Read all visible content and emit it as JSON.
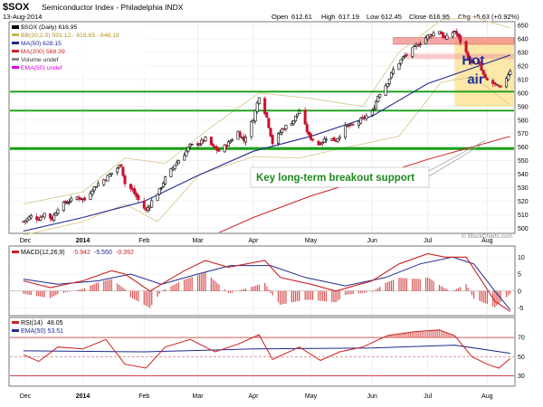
{
  "chart_data": {
    "type": "candlestick",
    "header": {
      "symbol": "$SOX",
      "name": "Semiconductor Index - Philadelphia INDX",
      "date": "13-Aug-2014",
      "open_label": "Open",
      "open": "612.61",
      "high_label": "High",
      "high": "617.19",
      "low_label": "Low",
      "low": "612.45",
      "close_label": "Close",
      "close": "616.95",
      "chg_label": "Chg",
      "chg": "+5.63 (+0.92%)",
      "watermark": "© StockCharts.com"
    },
    "price": {
      "ylim": [
        497,
        652
      ],
      "yticks": [
        500,
        510,
        520,
        530,
        540,
        550,
        560,
        570,
        580,
        590,
        600,
        610,
        620,
        630,
        640,
        650
      ],
      "legend": [
        {
          "text": "$SOX (Daily) 616.95",
          "color": "#000000"
        },
        {
          "text": "BB(20,2.0) 591.12 - 619.65 - 648.18",
          "color": "#c8b24a"
        },
        {
          "text": "MA(50) 628.15",
          "color": "#1f2a8f"
        },
        {
          "text": "MA(200) 568.39",
          "color": "#cc2222"
        },
        {
          "text": "Volume undef",
          "color": "#888888"
        },
        {
          "text": "EMA(50) undef",
          "color": "#e000e0"
        }
      ],
      "closes": [
        {
          "x": "2013-12-02",
          "y": 505
        },
        {
          "x": "2013-12-06",
          "y": 509
        },
        {
          "x": "2013-12-10",
          "y": 507
        },
        {
          "x": "2013-12-13",
          "y": 511
        },
        {
          "x": "2013-12-17",
          "y": 507
        },
        {
          "x": "2013-12-20",
          "y": 515
        },
        {
          "x": "2013-12-24",
          "y": 519
        },
        {
          "x": "2013-12-30",
          "y": 523
        },
        {
          "x": "2014-01-03",
          "y": 521
        },
        {
          "x": "2014-01-07",
          "y": 529
        },
        {
          "x": "2014-01-10",
          "y": 533
        },
        {
          "x": "2014-01-14",
          "y": 537
        },
        {
          "x": "2014-01-17",
          "y": 541
        },
        {
          "x": "2014-01-22",
          "y": 547
        },
        {
          "x": "2014-01-24",
          "y": 533
        },
        {
          "x": "2014-01-28",
          "y": 528
        },
        {
          "x": "2014-01-31",
          "y": 521
        },
        {
          "x": "2014-02-04",
          "y": 513
        },
        {
          "x": "2014-02-07",
          "y": 520
        },
        {
          "x": "2014-02-11",
          "y": 528
        },
        {
          "x": "2014-02-14",
          "y": 537
        },
        {
          "x": "2014-02-19",
          "y": 547
        },
        {
          "x": "2014-02-24",
          "y": 555
        },
        {
          "x": "2014-02-27",
          "y": 561
        },
        {
          "x": "2014-03-04",
          "y": 563
        },
        {
          "x": "2014-03-07",
          "y": 566
        },
        {
          "x": "2014-03-11",
          "y": 560
        },
        {
          "x": "2014-03-14",
          "y": 557
        },
        {
          "x": "2014-03-19",
          "y": 563
        },
        {
          "x": "2014-03-24",
          "y": 571
        },
        {
          "x": "2014-03-27",
          "y": 565
        },
        {
          "x": "2014-04-01",
          "y": 581
        },
        {
          "x": "2014-04-04",
          "y": 598
        },
        {
          "x": "2014-04-08",
          "y": 582
        },
        {
          "x": "2014-04-11",
          "y": 563
        },
        {
          "x": "2014-04-16",
          "y": 573
        },
        {
          "x": "2014-04-22",
          "y": 580
        },
        {
          "x": "2014-04-25",
          "y": 587
        },
        {
          "x": "2014-04-30",
          "y": 568
        },
        {
          "x": "2014-05-05",
          "y": 562
        },
        {
          "x": "2014-05-09",
          "y": 567
        },
        {
          "x": "2014-05-14",
          "y": 565
        },
        {
          "x": "2014-05-19",
          "y": 575
        },
        {
          "x": "2014-05-23",
          "y": 576
        },
        {
          "x": "2014-05-28",
          "y": 581
        },
        {
          "x": "2014-06-02",
          "y": 586
        },
        {
          "x": "2014-06-05",
          "y": 598
        },
        {
          "x": "2014-06-10",
          "y": 608
        },
        {
          "x": "2014-06-13",
          "y": 617
        },
        {
          "x": "2014-06-18",
          "y": 626
        },
        {
          "x": "2014-06-23",
          "y": 632
        },
        {
          "x": "2014-06-26",
          "y": 636
        },
        {
          "x": "2014-07-01",
          "y": 642
        },
        {
          "x": "2014-07-07",
          "y": 646
        },
        {
          "x": "2014-07-10",
          "y": 640
        },
        {
          "x": "2014-07-15",
          "y": 646
        },
        {
          "x": "2014-07-18",
          "y": 638
        },
        {
          "x": "2014-07-23",
          "y": 624
        },
        {
          "x": "2014-07-28",
          "y": 620
        },
        {
          "x": "2014-07-31",
          "y": 610
        },
        {
          "x": "2014-08-05",
          "y": 606
        },
        {
          "x": "2014-08-08",
          "y": 603
        },
        {
          "x": "2014-08-13",
          "y": 617
        }
      ],
      "ma50": [
        {
          "x": "2013-12-02",
          "y": 498
        },
        {
          "x": "2014-01-02",
          "y": 508
        },
        {
          "x": "2014-02-03",
          "y": 520
        },
        {
          "x": "2014-03-03",
          "y": 539
        },
        {
          "x": "2014-04-01",
          "y": 557
        },
        {
          "x": "2014-05-01",
          "y": 568
        },
        {
          "x": "2014-06-02",
          "y": 583
        },
        {
          "x": "2014-07-01",
          "y": 607
        },
        {
          "x": "2014-08-13",
          "y": 628
        }
      ],
      "ma200": [
        {
          "x": "2014-02-03",
          "y": 466
        },
        {
          "x": "2014-03-03",
          "y": 490
        },
        {
          "x": "2014-04-01",
          "y": 508
        },
        {
          "x": "2014-05-01",
          "y": 524
        },
        {
          "x": "2014-06-02",
          "y": 538
        },
        {
          "x": "2014-07-01",
          "y": 551
        },
        {
          "x": "2014-08-13",
          "y": 568
        }
      ],
      "bb_upper": [
        {
          "x": "2013-12-02",
          "y": 518
        },
        {
          "x": "2014-01-02",
          "y": 527
        },
        {
          "x": "2014-01-24",
          "y": 552
        },
        {
          "x": "2014-02-14",
          "y": 548
        },
        {
          "x": "2014-03-10",
          "y": 575
        },
        {
          "x": "2014-04-04",
          "y": 600
        },
        {
          "x": "2014-05-01",
          "y": 596
        },
        {
          "x": "2014-05-28",
          "y": 590
        },
        {
          "x": "2014-06-16",
          "y": 630
        },
        {
          "x": "2014-07-08",
          "y": 654
        },
        {
          "x": "2014-07-25",
          "y": 656
        },
        {
          "x": "2014-08-13",
          "y": 648
        }
      ],
      "bb_lower": [
        {
          "x": "2013-12-02",
          "y": 495
        },
        {
          "x": "2014-01-02",
          "y": 505
        },
        {
          "x": "2014-01-24",
          "y": 518
        },
        {
          "x": "2014-02-10",
          "y": 505
        },
        {
          "x": "2014-03-04",
          "y": 540
        },
        {
          "x": "2014-04-01",
          "y": 553
        },
        {
          "x": "2014-04-25",
          "y": 552
        },
        {
          "x": "2014-05-20",
          "y": 560
        },
        {
          "x": "2014-06-16",
          "y": 568
        },
        {
          "x": "2014-07-08",
          "y": 608
        },
        {
          "x": "2014-07-25",
          "y": 612
        },
        {
          "x": "2014-08-13",
          "y": 591
        }
      ],
      "horizontal_levels": [
        {
          "y": 601,
          "color": "#15a015"
        },
        {
          "y": 587,
          "color": "#15a015"
        },
        {
          "y": 559,
          "color": "#15a015"
        }
      ],
      "resistance_band": {
        "x1": "2014-06-13",
        "x2": "2014-08-15",
        "y1": 636,
        "y2": 641
      },
      "second_band": {
        "x1": "2014-06-20",
        "x2": "2014-08-15",
        "y1": 625,
        "y2": 629
      },
      "hot_air_box": {
        "x1": "2014-07-15",
        "x2": "2014-08-15",
        "y1": 590,
        "y2": 640,
        "label_line1": "Hot",
        "label_line2": "air"
      },
      "breakout_label": "Key long-term breakout support",
      "breakout_arrow_to": {
        "x": "2014-07-31",
        "y": 565
      }
    },
    "xaxis": {
      "start": "2013-11-25",
      "end": "2014-08-15",
      "labels": [
        {
          "x": "2013-12-03",
          "text": "Dec"
        },
        {
          "x": "2014-01-02",
          "text": "2014"
        },
        {
          "x": "2014-02-03",
          "text": "Feb"
        },
        {
          "x": "2014-03-03",
          "text": "Mar"
        },
        {
          "x": "2014-04-01",
          "text": "Apr"
        },
        {
          "x": "2014-05-01",
          "text": "May"
        },
        {
          "x": "2014-06-02",
          "text": "Jun"
        },
        {
          "x": "2014-07-01",
          "text": "Jul"
        },
        {
          "x": "2014-08-01",
          "text": "Aug"
        }
      ]
    },
    "macd": {
      "legend_name": "MACD(12,26,9)",
      "legend_values": [
        "-5.942",
        "-5.550",
        "-0.392"
      ],
      "ylim": [
        -7,
        13
      ],
      "yticks": [
        -5,
        0,
        5,
        10
      ],
      "macd_line": [
        {
          "x": "2013-12-02",
          "y": 3
        },
        {
          "x": "2013-12-16",
          "y": 1
        },
        {
          "x": "2014-01-02",
          "y": 3
        },
        {
          "x": "2014-01-17",
          "y": 6
        },
        {
          "x": "2014-01-24",
          "y": 5
        },
        {
          "x": "2014-02-06",
          "y": 0
        },
        {
          "x": "2014-02-24",
          "y": 6
        },
        {
          "x": "2014-03-07",
          "y": 9
        },
        {
          "x": "2014-03-19",
          "y": 7
        },
        {
          "x": "2014-04-07",
          "y": 9
        },
        {
          "x": "2014-04-15",
          "y": 4
        },
        {
          "x": "2014-05-01",
          "y": 2
        },
        {
          "x": "2014-05-14",
          "y": 0
        },
        {
          "x": "2014-06-02",
          "y": 3
        },
        {
          "x": "2014-06-16",
          "y": 8
        },
        {
          "x": "2014-07-01",
          "y": 11
        },
        {
          "x": "2014-07-10",
          "y": 10
        },
        {
          "x": "2014-07-21",
          "y": 10
        },
        {
          "x": "2014-07-28",
          "y": 4
        },
        {
          "x": "2014-08-05",
          "y": -3
        },
        {
          "x": "2014-08-13",
          "y": -6
        }
      ],
      "signal_line": [
        {
          "x": "2013-12-02",
          "y": 3.5
        },
        {
          "x": "2013-12-20",
          "y": 2
        },
        {
          "x": "2014-01-10",
          "y": 3
        },
        {
          "x": "2014-01-27",
          "y": 5
        },
        {
          "x": "2014-02-12",
          "y": 2
        },
        {
          "x": "2014-03-03",
          "y": 5
        },
        {
          "x": "2014-03-20",
          "y": 7.5
        },
        {
          "x": "2014-04-10",
          "y": 7.5
        },
        {
          "x": "2014-04-28",
          "y": 4
        },
        {
          "x": "2014-05-19",
          "y": 1.5
        },
        {
          "x": "2014-06-09",
          "y": 4
        },
        {
          "x": "2014-06-27",
          "y": 8
        },
        {
          "x": "2014-07-14",
          "y": 10
        },
        {
          "x": "2014-07-25",
          "y": 8
        },
        {
          "x": "2014-08-05",
          "y": 0
        },
        {
          "x": "2014-08-13",
          "y": -5.5
        }
      ]
    },
    "rsi": {
      "legend_name": "RSI(14)",
      "legend_value": "48.05",
      "legend_ema": "EMA(50) 53.51",
      "ylim": [
        20,
        90
      ],
      "yticks": [
        30,
        50,
        70
      ],
      "rsi_line": [
        {
          "x": "2013-12-02",
          "y": 52
        },
        {
          "x": "2013-12-10",
          "y": 45
        },
        {
          "x": "2013-12-20",
          "y": 60
        },
        {
          "x": "2014-01-02",
          "y": 58
        },
        {
          "x": "2014-01-14",
          "y": 68
        },
        {
          "x": "2014-01-24",
          "y": 42
        },
        {
          "x": "2014-02-04",
          "y": 38
        },
        {
          "x": "2014-02-14",
          "y": 60
        },
        {
          "x": "2014-02-27",
          "y": 68
        },
        {
          "x": "2014-03-12",
          "y": 55
        },
        {
          "x": "2014-03-24",
          "y": 63
        },
        {
          "x": "2014-04-04",
          "y": 73
        },
        {
          "x": "2014-04-11",
          "y": 47
        },
        {
          "x": "2014-04-25",
          "y": 60
        },
        {
          "x": "2014-05-06",
          "y": 46
        },
        {
          "x": "2014-05-16",
          "y": 55
        },
        {
          "x": "2014-05-28",
          "y": 60
        },
        {
          "x": "2014-06-10",
          "y": 72
        },
        {
          "x": "2014-06-24",
          "y": 76
        },
        {
          "x": "2014-07-07",
          "y": 78
        },
        {
          "x": "2014-07-15",
          "y": 72
        },
        {
          "x": "2014-07-24",
          "y": 50
        },
        {
          "x": "2014-08-01",
          "y": 42
        },
        {
          "x": "2014-08-07",
          "y": 38
        },
        {
          "x": "2014-08-13",
          "y": 48
        }
      ],
      "ema_line": [
        {
          "x": "2013-12-02",
          "y": 56
        },
        {
          "x": "2014-02-03",
          "y": 55
        },
        {
          "x": "2014-04-01",
          "y": 58
        },
        {
          "x": "2014-06-02",
          "y": 59
        },
        {
          "x": "2014-07-15",
          "y": 62
        },
        {
          "x": "2014-08-13",
          "y": 53.5
        }
      ]
    }
  }
}
